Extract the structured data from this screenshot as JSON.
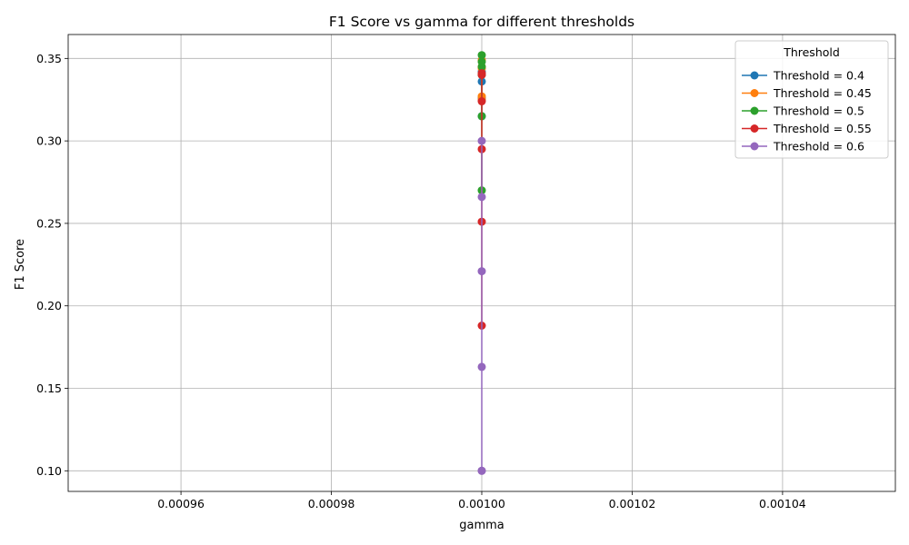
{
  "chart_data": {
    "type": "line",
    "title": "F1 Score vs gamma for different thresholds",
    "xlabel": "gamma",
    "ylabel": "F1 Score",
    "xlim": [
      0.000945,
      0.001055
    ],
    "ylim": [
      0.0875,
      0.3645
    ],
    "xticks": [
      0.00096,
      0.00098,
      0.001,
      0.00102,
      0.00104
    ],
    "xtick_labels": [
      "0.00096",
      "0.00098",
      "0.00100",
      "0.00102",
      "0.00104"
    ],
    "yticks": [
      0.1,
      0.15,
      0.2,
      0.25,
      0.3,
      0.35
    ],
    "ytick_labels": [
      "0.10",
      "0.15",
      "0.20",
      "0.25",
      "0.30",
      "0.35"
    ],
    "grid": true,
    "legend": {
      "title": "Threshold",
      "position": "top-right"
    },
    "series": [
      {
        "name": "Threshold = 0.4",
        "color": "#1f77b4",
        "x": [
          0.001,
          0.001,
          0.001,
          0.001
        ],
        "y": [
          0.336,
          0.342,
          0.326,
          0.315
        ]
      },
      {
        "name": "Threshold = 0.45",
        "color": "#ff7f0e",
        "x": [
          0.001,
          0.001,
          0.001,
          0.001,
          0.001
        ],
        "y": [
          0.344,
          0.349,
          0.345,
          0.327,
          0.325
        ]
      },
      {
        "name": "Threshold = 0.5",
        "color": "#2ca02c",
        "x": [
          0.001,
          0.001,
          0.001,
          0.001,
          0.001,
          0.001
        ],
        "y": [
          0.348,
          0.352,
          0.345,
          0.34,
          0.315,
          0.27
        ]
      },
      {
        "name": "Threshold = 0.55",
        "color": "#d62728",
        "x": [
          0.001,
          0.001,
          0.001,
          0.001,
          0.001,
          0.001
        ],
        "y": [
          0.34,
          0.341,
          0.324,
          0.295,
          0.251,
          0.188
        ]
      },
      {
        "name": "Threshold = 0.6",
        "color": "#9467bd",
        "x": [
          0.001,
          0.001,
          0.001,
          0.001,
          0.001,
          0.001
        ],
        "y": [
          0.3,
          0.266,
          0.221,
          0.163,
          0.1,
          0.1
        ]
      }
    ]
  }
}
